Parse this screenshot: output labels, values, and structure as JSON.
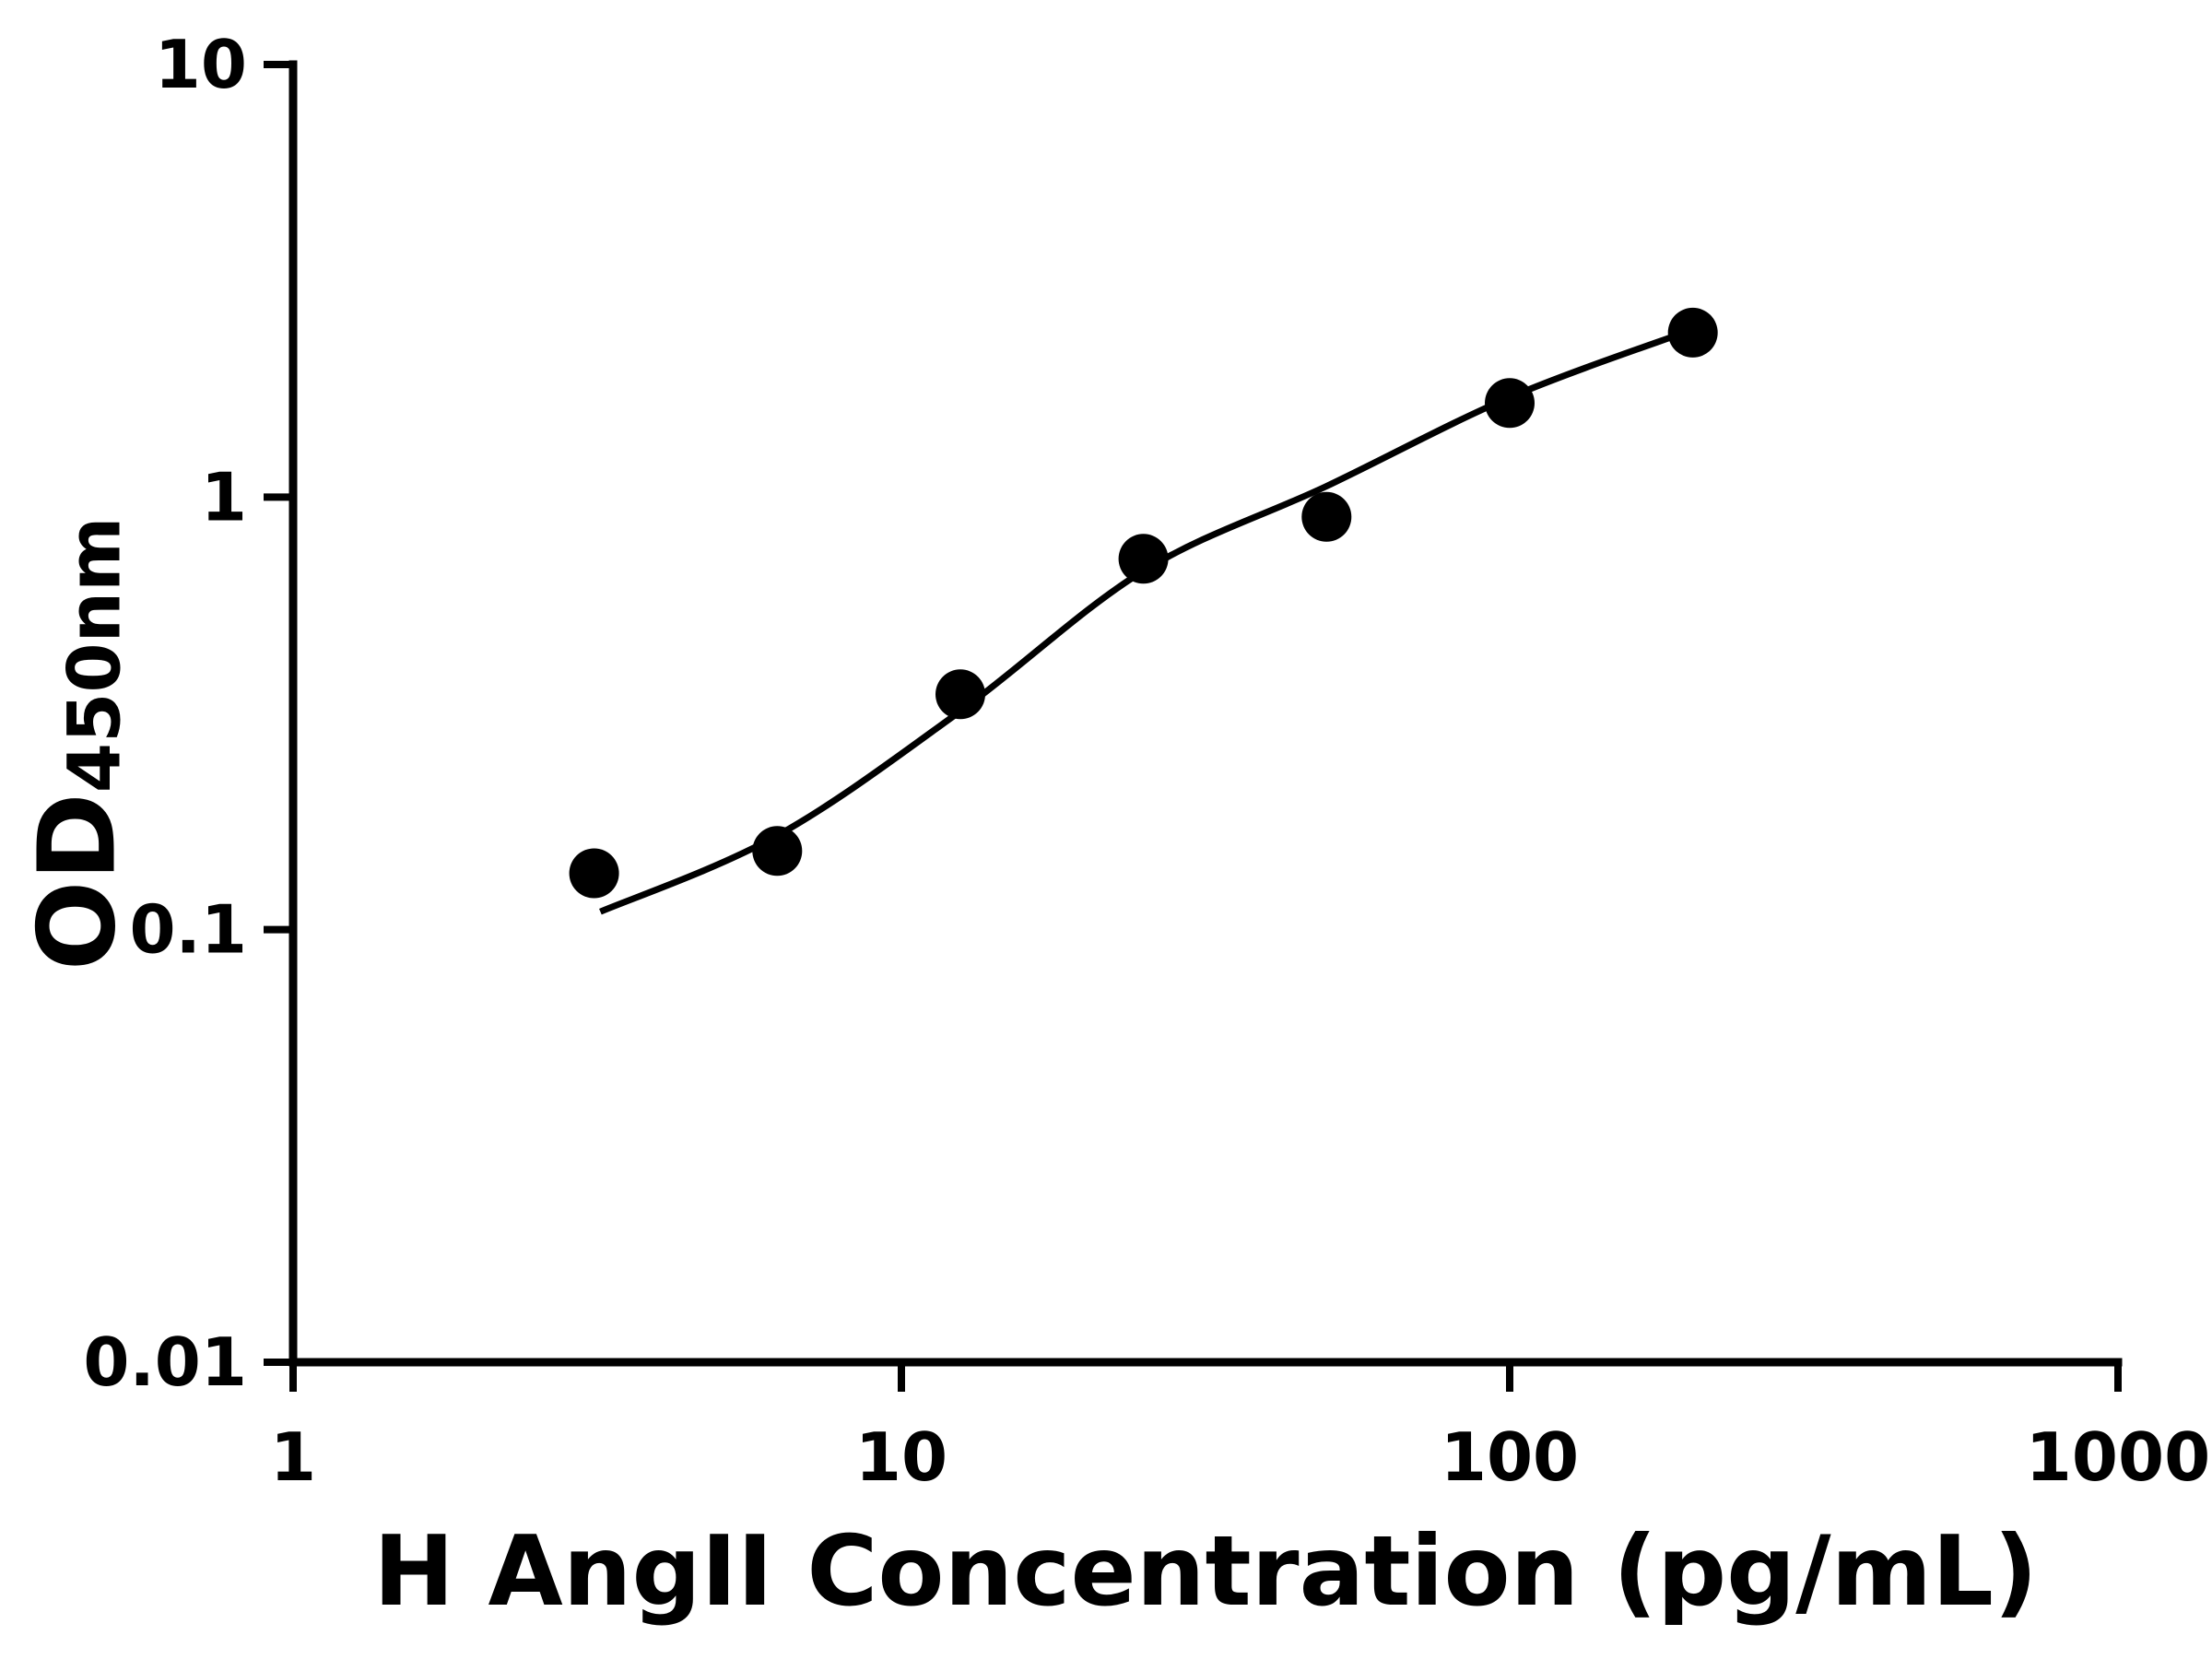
{
  "figure": {
    "background": "#ffffff",
    "foreground": "#000000"
  },
  "chart_data": {
    "type": "scatter",
    "title": "",
    "xlabel": "H AngII Concentration (pg/mL)",
    "ylabel_main": "OD",
    "ylabel_sub": "450nm",
    "x_scale": "log",
    "y_scale": "log",
    "xlim": [
      1,
      1000
    ],
    "ylim": [
      0.01,
      10
    ],
    "grid": false,
    "legend": false,
    "x_ticks": [
      {
        "value": 1,
        "label": "1"
      },
      {
        "value": 10,
        "label": "10"
      },
      {
        "value": 100,
        "label": "100"
      },
      {
        "value": 1000,
        "label": "1000"
      }
    ],
    "y_ticks": [
      {
        "value": 0.01,
        "label": "0.01"
      },
      {
        "value": 0.1,
        "label": "0.1"
      },
      {
        "value": 1,
        "label": "1"
      },
      {
        "value": 10,
        "label": "10"
      }
    ],
    "series": [
      {
        "name": "standard-points",
        "marker": "circle",
        "color": "#000000",
        "points": [
          {
            "x": 3.125,
            "y": 0.135
          },
          {
            "x": 6.25,
            "y": 0.152
          },
          {
            "x": 12.5,
            "y": 0.35
          },
          {
            "x": 25,
            "y": 0.72
          },
          {
            "x": 50,
            "y": 0.9
          },
          {
            "x": 100,
            "y": 1.65
          },
          {
            "x": 200,
            "y": 2.4
          }
        ]
      }
    ],
    "fit_curve": [
      {
        "x": 3.2,
        "y": 0.11
      },
      {
        "x": 6.25,
        "y": 0.165
      },
      {
        "x": 12.5,
        "y": 0.32
      },
      {
        "x": 25,
        "y": 0.675
      },
      {
        "x": 50,
        "y": 1.06
      },
      {
        "x": 100,
        "y": 1.7
      },
      {
        "x": 200,
        "y": 2.44
      }
    ]
  }
}
